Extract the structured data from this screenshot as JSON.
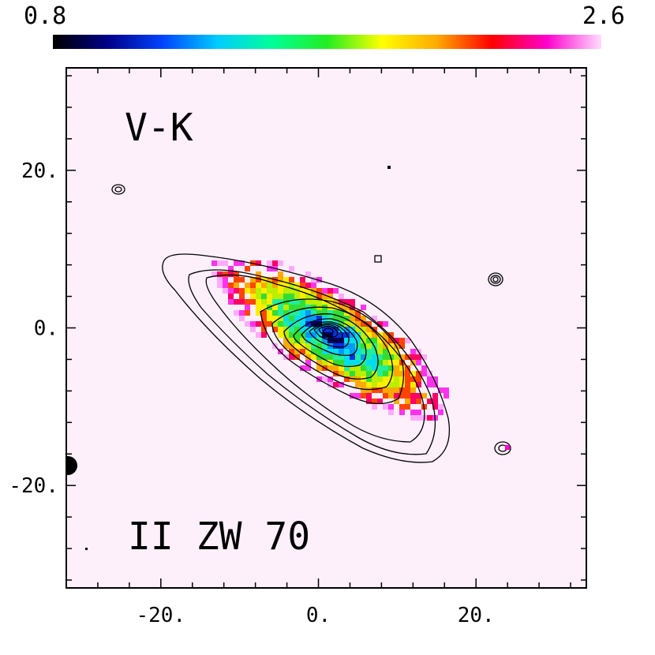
{
  "colorbar": {
    "min_label": "0.8",
    "max_label": "2.6",
    "min": 0.8,
    "max": 2.6,
    "stops": [
      "#000000",
      "#000088",
      "#0044ff",
      "#00ccff",
      "#00ff99",
      "#22ee22",
      "#ffff00",
      "#ffaa00",
      "#ff0000",
      "#ff00cc",
      "#ffddff"
    ]
  },
  "panel": {
    "title": "V-K",
    "object_name": "II ZW 70",
    "background_color": "#fdf0fb"
  },
  "axes": {
    "xlim": [
      -32,
      34
    ],
    "ylim": [
      -33,
      33
    ],
    "x_ticks": [
      {
        "value": -20,
        "label": "-20."
      },
      {
        "value": 0,
        "label": "0."
      },
      {
        "value": 20,
        "label": "20."
      }
    ],
    "y_ticks": [
      {
        "value": 20,
        "label": "20."
      },
      {
        "value": 0,
        "label": "0."
      },
      {
        "value": -20,
        "label": "-20."
      }
    ]
  }
}
